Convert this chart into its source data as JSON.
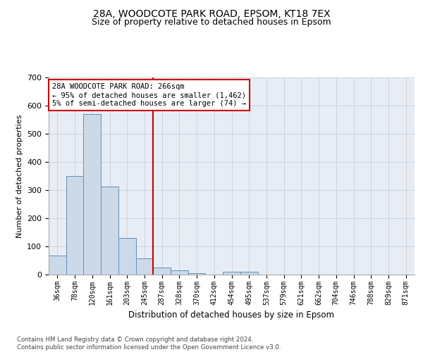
{
  "title1": "28A, WOODCOTE PARK ROAD, EPSOM, KT18 7EX",
  "title2": "Size of property relative to detached houses in Epsom",
  "xlabel": "Distribution of detached houses by size in Epsom",
  "ylabel": "Number of detached properties",
  "bar_labels": [
    "36sqm",
    "78sqm",
    "120sqm",
    "161sqm",
    "203sqm",
    "245sqm",
    "287sqm",
    "328sqm",
    "370sqm",
    "412sqm",
    "454sqm",
    "495sqm",
    "537sqm",
    "579sqm",
    "621sqm",
    "662sqm",
    "704sqm",
    "746sqm",
    "788sqm",
    "829sqm",
    "871sqm"
  ],
  "bar_values": [
    68,
    350,
    570,
    312,
    130,
    57,
    25,
    14,
    6,
    0,
    10,
    10,
    0,
    0,
    0,
    0,
    0,
    0,
    0,
    0,
    0
  ],
  "bar_color": "#ccd9e8",
  "bar_edge_color": "#6090b8",
  "vline_color": "#cc0000",
  "annotation_text": "28A WOODCOTE PARK ROAD: 266sqm\n← 95% of detached houses are smaller (1,462)\n5% of semi-detached houses are larger (74) →",
  "annotation_box_color": "#ffffff",
  "annotation_box_edge": "#cc0000",
  "ylim": [
    0,
    700
  ],
  "yticks": [
    0,
    100,
    200,
    300,
    400,
    500,
    600,
    700
  ],
  "grid_color": "#c8d0dc",
  "background_color": "#e8edf5",
  "footer_text": "Contains HM Land Registry data © Crown copyright and database right 2024.\nContains public sector information licensed under the Open Government Licence v3.0.",
  "title1_fontsize": 10,
  "title2_fontsize": 9
}
